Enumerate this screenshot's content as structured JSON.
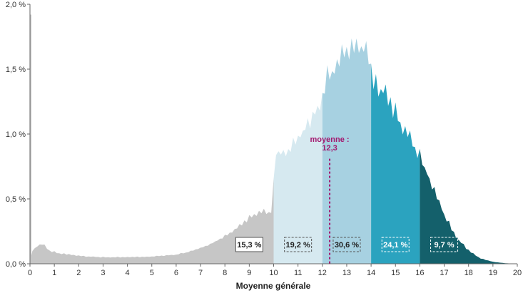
{
  "chart_data": {
    "type": "area",
    "title": "",
    "xlabel": "Moyenne générale",
    "ylabel": "",
    "xlim": [
      0,
      20
    ],
    "ylim": [
      0,
      2.0
    ],
    "x_ticks": [
      "0",
      "1",
      "2",
      "3",
      "4",
      "5",
      "6",
      "7",
      "8",
      "9",
      "10",
      "11",
      "12",
      "13",
      "14",
      "15",
      "16",
      "17",
      "18",
      "19",
      "20"
    ],
    "y_ticks": [
      "0,0 %",
      "0,5 %",
      "1,0 %",
      "1,5 %",
      "2,0 %"
    ],
    "grid": false,
    "profile": [
      [
        0.0,
        0.02
      ],
      [
        0.1,
        0.1
      ],
      [
        0.3,
        0.14
      ],
      [
        0.55,
        0.15
      ],
      [
        0.8,
        0.1
      ],
      [
        1.2,
        0.08
      ],
      [
        2.0,
        0.06
      ],
      [
        3.0,
        0.05
      ],
      [
        4.0,
        0.05
      ],
      [
        5.0,
        0.055
      ],
      [
        6.0,
        0.07
      ],
      [
        6.5,
        0.09
      ],
      [
        7.0,
        0.12
      ],
      [
        7.5,
        0.16
      ],
      [
        8.0,
        0.21
      ],
      [
        8.5,
        0.28
      ],
      [
        9.0,
        0.35
      ],
      [
        9.5,
        0.39
      ],
      [
        9.98,
        0.4
      ],
      [
        10.02,
        0.88
      ],
      [
        10.5,
        0.83
      ],
      [
        11.0,
        0.97
      ],
      [
        11.5,
        1.1
      ],
      [
        11.98,
        1.22
      ],
      [
        12.02,
        1.35
      ],
      [
        12.5,
        1.52
      ],
      [
        13.0,
        1.62
      ],
      [
        13.5,
        1.68
      ],
      [
        13.98,
        1.58
      ],
      [
        14.02,
        1.4
      ],
      [
        14.5,
        1.32
      ],
      [
        15.0,
        1.15
      ],
      [
        15.5,
        0.98
      ],
      [
        15.98,
        0.82
      ],
      [
        16.02,
        0.82
      ],
      [
        16.5,
        0.6
      ],
      [
        17.0,
        0.38
      ],
      [
        17.5,
        0.2
      ],
      [
        18.0,
        0.1
      ],
      [
        18.5,
        0.04
      ],
      [
        19.0,
        0.015
      ],
      [
        19.5,
        0.004
      ],
      [
        20.0,
        0.0
      ]
    ],
    "segments": [
      {
        "from": 0,
        "to": 10,
        "color": "#c6c6c6",
        "label": "15,3 %",
        "label_x": 9.0,
        "text_color": "#222222",
        "box_fill": "#ffffff",
        "border": "#555555",
        "dashed": false
      },
      {
        "from": 10,
        "to": 12,
        "color": "#d6e9f0",
        "label": "19,2 %",
        "label_x": 11.0,
        "text_color": "#222222",
        "box_fill": "#d6e9f0",
        "border": "#555555",
        "dashed": true
      },
      {
        "from": 12,
        "to": 14,
        "color": "#a7d1e1",
        "label": "30,6 %",
        "label_x": 13.0,
        "text_color": "#222222",
        "box_fill": "#a7d1e1",
        "border": "#555555",
        "dashed": true
      },
      {
        "from": 14,
        "to": 16,
        "color": "#2ba3bf",
        "label": "24,1 %",
        "label_x": 15.0,
        "text_color": "#ffffff",
        "box_fill": "#2ba3bf",
        "border": "#ffffff",
        "dashed": true
      },
      {
        "from": 16,
        "to": 20,
        "color": "#14606b",
        "label": "9,7 %",
        "label_x": 17.0,
        "text_color": "#ffffff",
        "box_fill": "#14606b",
        "border": "#ffffff",
        "dashed": true
      }
    ],
    "mean": {
      "value": 12.3,
      "label_line1": "moyenne :",
      "label_line2": "12,3",
      "color": "#a3186f"
    }
  }
}
